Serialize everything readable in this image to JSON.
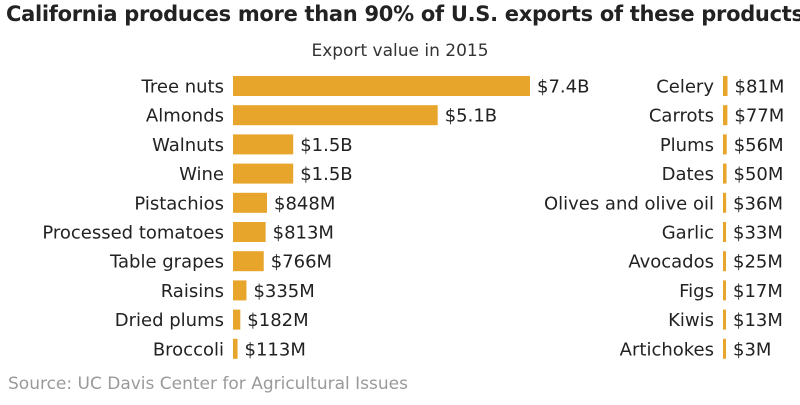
{
  "title": "California produces more than 90% of U.S. exports of these products:",
  "source": "Source: UC Davis Center for Agricultural Issues",
  "colors": {
    "bar": "#e8a52b",
    "text": "#222222",
    "source": "#9a9a9a"
  },
  "chart_data": {
    "type": "bar",
    "orientation": "horizontal",
    "title": "California produces more than 90% of U.S. exports of these products:",
    "subtitle": "Export value in 2015",
    "unit": "USD",
    "groups": [
      {
        "name": "left",
        "categories": [
          "Tree nuts",
          "Almonds",
          "Walnuts",
          "Wine",
          "Pistachios",
          "Processed tomatoes",
          "Table grapes",
          "Raisins",
          "Dried plums",
          "Broccoli"
        ],
        "values_millions": [
          7400,
          5100,
          1500,
          1500,
          848,
          813,
          766,
          335,
          182,
          113
        ],
        "data_labels": [
          "$7.4B",
          "$5.1B",
          "$1.5B",
          "$1.5B",
          "$848M",
          "$813M",
          "$766M",
          "$335M",
          "$182M",
          "$113M"
        ]
      },
      {
        "name": "right",
        "categories": [
          "Celery",
          "Carrots",
          "Plums",
          "Dates",
          "Olives and olive oil",
          "Garlic",
          "Avocados",
          "Figs",
          "Kiwis",
          "Artichokes"
        ],
        "values_millions": [
          81,
          77,
          56,
          50,
          36,
          33,
          25,
          17,
          13,
          3
        ],
        "data_labels": [
          "$81M",
          "$77M",
          "$56M",
          "$50M",
          "$36M",
          "$33M",
          "$25M",
          "$17M",
          "$13M",
          "$3M"
        ]
      }
    ],
    "xlim_millions": [
      0,
      7400
    ]
  }
}
